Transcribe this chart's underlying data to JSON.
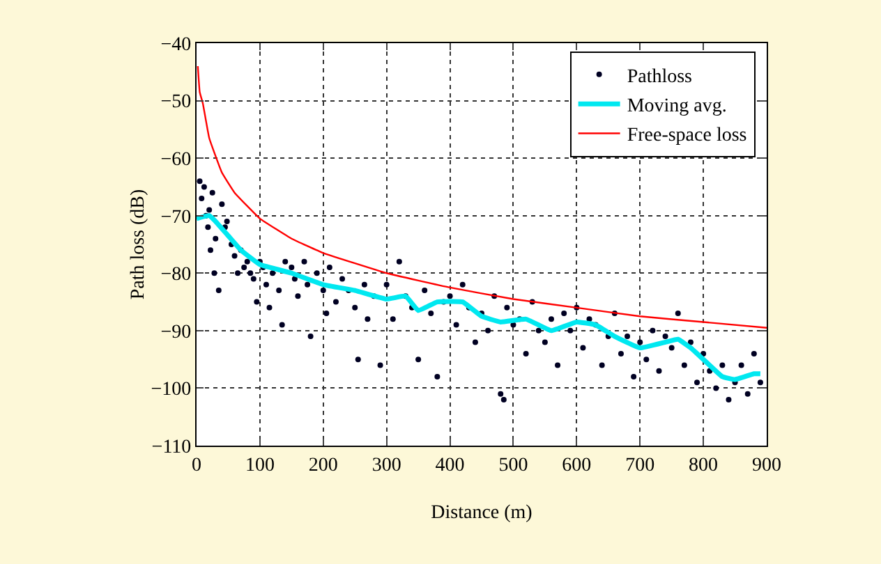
{
  "chart_data": {
    "type": "scatter",
    "xlabel": "Distance (m)",
    "ylabel": "Path loss (dB)",
    "xlim": [
      0,
      900
    ],
    "xticks": [
      0,
      100,
      200,
      300,
      400,
      500,
      600,
      700,
      800,
      900
    ],
    "ylim": [
      -110,
      -40
    ],
    "yticks": [
      -110,
      -100,
      -90,
      -80,
      -70,
      -60,
      -50,
      -40
    ],
    "grid": true,
    "legend": "top right",
    "series": [
      {
        "name": "Pathloss",
        "marker": "circle",
        "color": "#000022",
        "x": [
          5,
          8,
          12,
          15,
          18,
          20,
          22,
          25,
          28,
          30,
          35,
          40,
          45,
          48,
          55,
          60,
          65,
          70,
          75,
          80,
          85,
          90,
          95,
          100,
          105,
          110,
          115,
          120,
          130,
          135,
          140,
          150,
          155,
          160,
          170,
          175,
          180,
          190,
          200,
          205,
          210,
          220,
          230,
          240,
          250,
          255,
          265,
          270,
          280,
          290,
          300,
          310,
          320,
          330,
          340,
          350,
          360,
          370,
          380,
          390,
          400,
          410,
          420,
          430,
          440,
          450,
          460,
          470,
          480,
          485,
          490,
          500,
          510,
          520,
          530,
          540,
          550,
          560,
          570,
          580,
          590,
          600,
          610,
          620,
          630,
          640,
          650,
          660,
          670,
          680,
          690,
          700,
          710,
          720,
          730,
          740,
          750,
          760,
          770,
          780,
          790,
          800,
          810,
          820,
          830,
          840,
          850,
          860,
          870,
          880,
          890
        ],
        "values": [
          -64,
          -67,
          -65,
          -70,
          -72,
          -69,
          -76,
          -66,
          -80,
          -74,
          -83,
          -68,
          -72,
          -71,
          -75,
          -77,
          -80,
          -76,
          -79,
          -78,
          -80,
          -81,
          -85,
          -78,
          -79,
          -82,
          -86,
          -80,
          -83,
          -89,
          -78,
          -79,
          -81,
          -84,
          -78,
          -82,
          -91,
          -80,
          -83,
          -87,
          -79,
          -85,
          -81,
          -83,
          -86,
          -95,
          -82,
          -88,
          -84,
          -96,
          -82,
          -88,
          -78,
          -84,
          -86,
          -95,
          -83,
          -87,
          -98,
          -85,
          -84,
          -89,
          -82,
          -86,
          -92,
          -87,
          -90,
          -84,
          -101,
          -102,
          -86,
          -89,
          -88,
          -94,
          -85,
          -90,
          -92,
          -88,
          -96,
          -87,
          -90,
          -86,
          -93,
          -88,
          -89,
          -96,
          -91,
          -87,
          -94,
          -91,
          -98,
          -92,
          -95,
          -90,
          -97,
          -91,
          -93,
          -87,
          -96,
          -92,
          -99,
          -94,
          -97,
          -100,
          -96,
          -102,
          -99,
          -96,
          -101,
          -94,
          -99
        ]
      },
      {
        "name": "Moving avg.",
        "type": "line",
        "marker": "none",
        "color": "#00e8f0",
        "x": [
          0,
          20,
          30,
          50,
          70,
          100,
          150,
          200,
          250,
          300,
          330,
          350,
          380,
          420,
          450,
          480,
          520,
          560,
          600,
          630,
          660,
          700,
          740,
          760,
          780,
          800,
          830,
          850,
          880,
          890
        ],
        "values": [
          -70.5,
          -70,
          -71,
          -73.5,
          -76,
          -78.5,
          -80,
          -82,
          -83,
          -84.5,
          -84,
          -86.5,
          -85,
          -85,
          -87.5,
          -88.5,
          -88,
          -90,
          -88.5,
          -89,
          -91,
          -93,
          -92,
          -91.5,
          -93,
          -95,
          -98,
          -98.5,
          -97.5,
          -97.5
        ]
      },
      {
        "name": "Free-space loss",
        "type": "line",
        "marker": "none",
        "color": "#ff0000",
        "x": [
          2,
          5,
          10,
          20,
          40,
          60,
          100,
          150,
          200,
          300,
          400,
          500,
          600,
          700,
          800,
          900
        ],
        "values": [
          -44,
          -48.5,
          -50.5,
          -56.5,
          -62.5,
          -66,
          -70.5,
          -74,
          -76.5,
          -80,
          -82.5,
          -84.5,
          -86,
          -87.5,
          -88.5,
          -89.5
        ]
      }
    ]
  }
}
